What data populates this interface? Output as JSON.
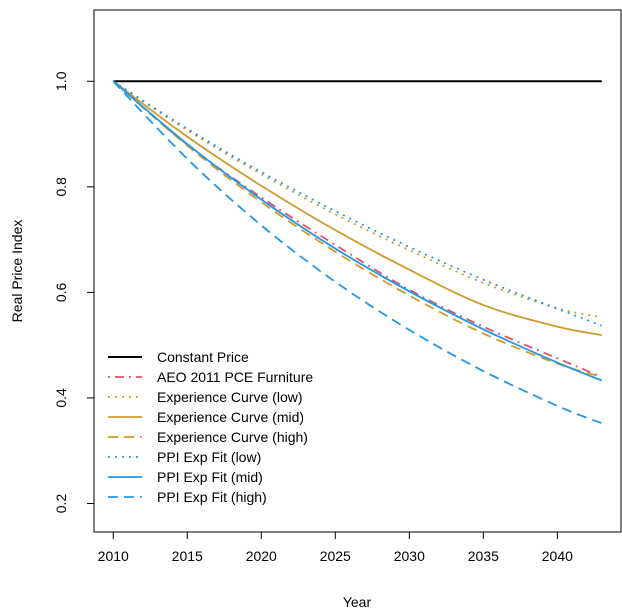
{
  "chart_data": {
    "type": "line",
    "title": "",
    "xlabel": "Year",
    "ylabel": "Real Price Index",
    "xlim": [
      2008.7,
      2044.3
    ],
    "ylim": [
      0.146,
      1.135
    ],
    "xticks": [
      2010,
      2015,
      2020,
      2025,
      2030,
      2035,
      2040
    ],
    "yticks": [
      0.2,
      0.4,
      0.6,
      0.8,
      1.0
    ],
    "ytick_labels": [
      "0.2",
      "0.4",
      "0.6",
      "0.8",
      "1.0"
    ],
    "grid": false,
    "legend_position": "bottom-left",
    "x": [
      2010,
      2015,
      2020,
      2025,
      2030,
      2035,
      2040,
      2043
    ],
    "series": [
      {
        "name": "Constant Price",
        "color": "#000000",
        "dash": "solid",
        "values": [
          1.0,
          1.0,
          1.0,
          1.0,
          1.0,
          1.0,
          1.0,
          1.0
        ]
      },
      {
        "name": "AEO 2011 PCE Furniture",
        "color": "#DF536B",
        "dash": "dashdot",
        "values": [
          1.0,
          0.88,
          0.78,
          0.69,
          0.605,
          0.535,
          0.475,
          0.44
        ]
      },
      {
        "name": "Experience Curve (low)",
        "color": "#CD9B2D",
        "dash": "dotted",
        "values": [
          1.0,
          0.907,
          0.824,
          0.748,
          0.68,
          0.618,
          0.57,
          0.553
        ]
      },
      {
        "name": "Experience Curve (mid)",
        "color": "#CD9B2D",
        "dash": "solid",
        "values": [
          1.0,
          0.895,
          0.802,
          0.718,
          0.643,
          0.576,
          0.535,
          0.519
        ]
      },
      {
        "name": "Experience Curve (high)",
        "color": "#CD9B2D",
        "dash": "dashed",
        "values": [
          1.0,
          0.878,
          0.771,
          0.677,
          0.594,
          0.522,
          0.465,
          0.44
        ]
      },
      {
        "name": "PPI Exp Fit (low)",
        "color": "#2297E6",
        "dash": "dotted",
        "values": [
          1.0,
          0.91,
          0.828,
          0.754,
          0.686,
          0.624,
          0.569,
          0.537
        ]
      },
      {
        "name": "PPI Exp Fit (mid)",
        "color": "#2297E6",
        "dash": "solid",
        "values": [
          1.0,
          0.881,
          0.776,
          0.683,
          0.602,
          0.53,
          0.467,
          0.433
        ]
      },
      {
        "name": "PPI Exp Fit (high)",
        "color": "#2297E6",
        "dash": "dashed",
        "values": [
          1.0,
          0.853,
          0.727,
          0.62,
          0.529,
          0.451,
          0.385,
          0.352
        ]
      }
    ]
  }
}
